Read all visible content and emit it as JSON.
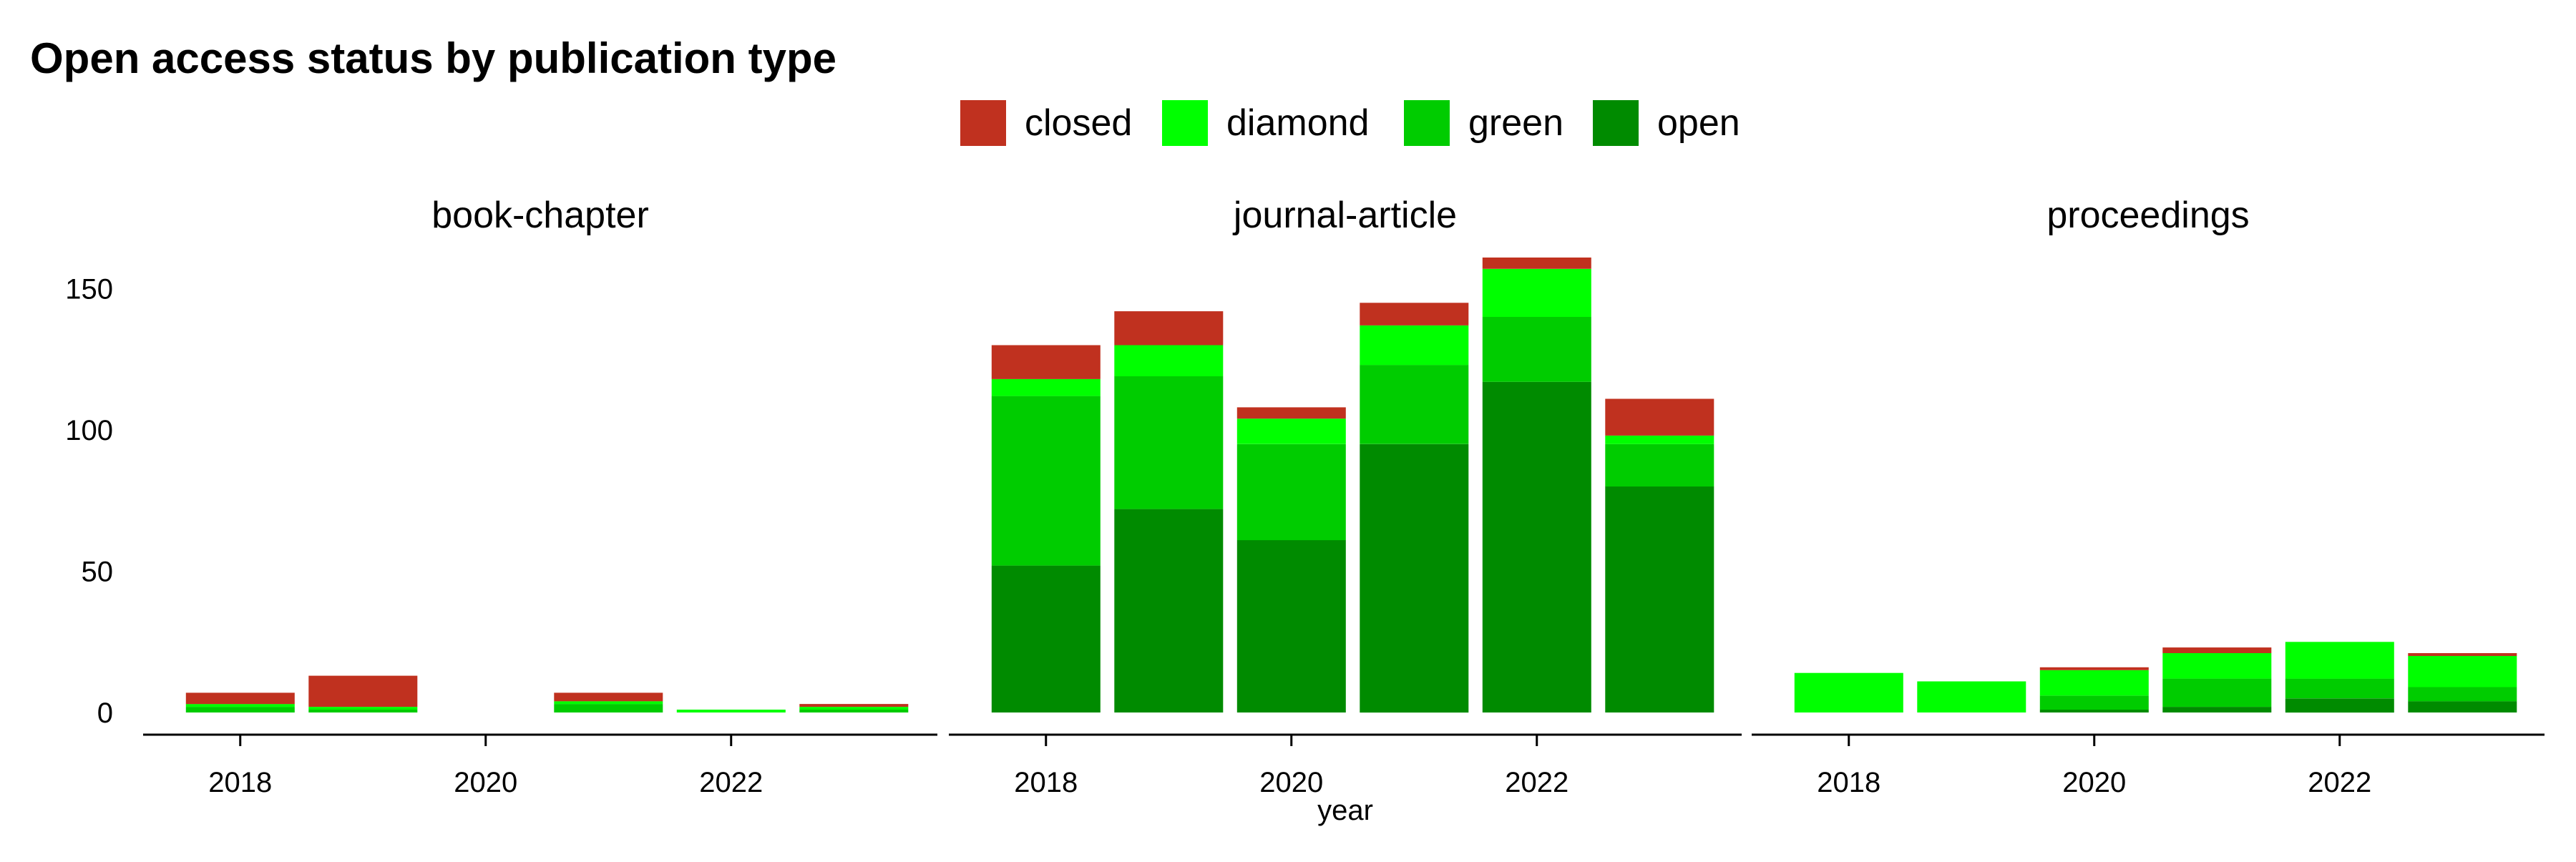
{
  "chart_data": {
    "type": "bar",
    "stacked": true,
    "faceted": true,
    "title": "Open access status by publication type",
    "xlabel": "year",
    "ylabel": "",
    "legend": {
      "position": "top",
      "entries": [
        "closed",
        "diamond",
        "green",
        "open"
      ]
    },
    "stack_order": [
      "open",
      "green",
      "diamond",
      "closed"
    ],
    "colors": {
      "closed": "#C0311F",
      "diamond": "#00FF00",
      "green": "#00CC00",
      "open": "#008B00"
    },
    "years": [
      2018,
      2019,
      2020,
      2021,
      2022,
      2023
    ],
    "x_ticks": [
      2018,
      2020,
      2022
    ],
    "ylim": [
      0,
      160
    ],
    "y_ticks": [
      0,
      50,
      100,
      150
    ],
    "grid": false,
    "panels": [
      {
        "name": "book-chapter",
        "series": {
          "open": [
            0,
            0,
            0,
            0,
            0,
            0
          ],
          "green": [
            2,
            1,
            0,
            3,
            0,
            1
          ],
          "diamond": [
            1,
            1,
            0,
            1,
            1,
            1
          ],
          "closed": [
            4,
            11,
            0,
            3,
            0,
            1
          ]
        }
      },
      {
        "name": "journal-article",
        "series": {
          "open": [
            52,
            72,
            61,
            95,
            117,
            80
          ],
          "green": [
            60,
            47,
            34,
            28,
            23,
            15
          ],
          "diamond": [
            6,
            11,
            9,
            14,
            17,
            3
          ],
          "closed": [
            12,
            12,
            4,
            8,
            4,
            13
          ]
        }
      },
      {
        "name": "proceedings",
        "series": {
          "open": [
            0,
            0,
            1,
            2,
            5,
            4
          ],
          "green": [
            0,
            0,
            5,
            10,
            7,
            5
          ],
          "diamond": [
            14,
            11,
            9,
            9,
            13,
            11
          ],
          "closed": [
            0,
            0,
            1,
            2,
            0,
            1
          ]
        }
      }
    ]
  }
}
